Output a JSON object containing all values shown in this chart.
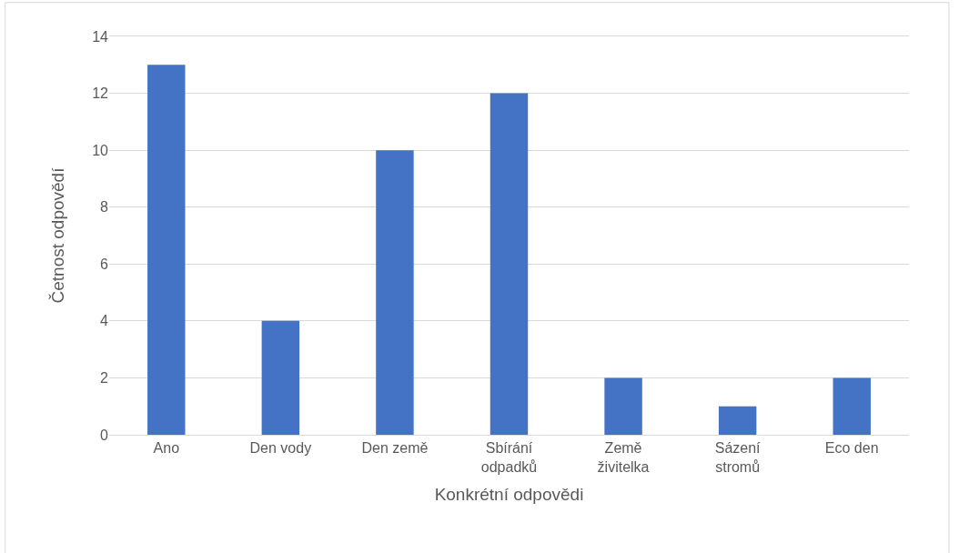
{
  "chart_data": {
    "type": "bar",
    "xlabel": "Konkrétní odpovědi",
    "ylabel": "Četnost odpovědí",
    "categories": [
      "Ano",
      "Den vody",
      "Den země",
      "Sbírání odpadků",
      "Země živitelka",
      "Sázení stromů",
      "Eco den"
    ],
    "values": [
      13,
      4,
      10,
      12,
      2,
      1,
      2
    ],
    "color": "#4472c4",
    "ylim": [
      0,
      14
    ],
    "yticks": [
      0,
      2,
      4,
      6,
      8,
      10,
      12,
      14
    ],
    "grid": "y"
  }
}
